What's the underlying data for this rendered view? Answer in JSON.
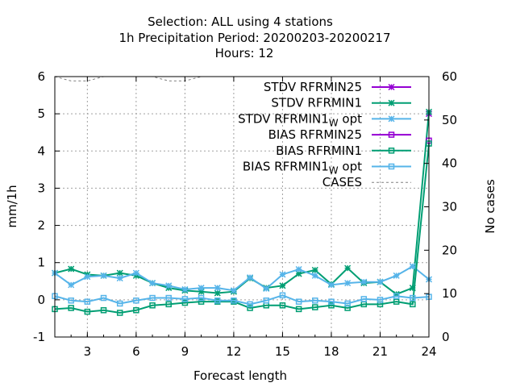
{
  "chart_data": {
    "type": "line",
    "title_lines": [
      "Selection: ALL using     4 stations",
      "1h Precipitation   Period: 20200203-20200217",
      "Hours:  12"
    ],
    "xlabel": "Forecast length",
    "ylabel": "mm/1h",
    "y2label": "No cases",
    "x": [
      1,
      2,
      3,
      4,
      5,
      6,
      7,
      8,
      9,
      10,
      11,
      12,
      13,
      14,
      15,
      16,
      17,
      18,
      19,
      20,
      21,
      22,
      23,
      24
    ],
    "xlim": [
      1,
      24
    ],
    "ylim": [
      -1,
      6
    ],
    "y2lim": [
      0,
      60
    ],
    "xticks": [
      "3",
      "6",
      "9",
      "12",
      "15",
      "18",
      "21",
      "24"
    ],
    "yticks": [
      "-1",
      "0",
      "1",
      "2",
      "3",
      "4",
      "5",
      "6"
    ],
    "y2ticks": [
      "0",
      "10",
      "20",
      "30",
      "40",
      "50",
      "60"
    ],
    "grid": true,
    "legend_position": "top-right",
    "series": [
      {
        "name": "STDV RFRMIN25",
        "color": "#9400d3",
        "marker": "star",
        "axis": "y",
        "values": [
          null,
          null,
          null,
          null,
          null,
          null,
          null,
          null,
          null,
          null,
          null,
          null,
          null,
          null,
          null,
          null,
          null,
          null,
          null,
          null,
          null,
          null,
          null,
          5.0
        ]
      },
      {
        "name": "STDV RFRMIN1",
        "color": "#009e73",
        "marker": "star",
        "axis": "y",
        "values": [
          0.72,
          0.83,
          0.68,
          0.65,
          0.72,
          0.65,
          0.45,
          0.32,
          0.25,
          0.22,
          0.18,
          0.22,
          0.58,
          0.32,
          0.38,
          0.7,
          0.8,
          0.42,
          0.85,
          0.45,
          0.48,
          0.15,
          0.32,
          5.05
        ]
      },
      {
        "name": "STDV RFRMIN1_W opt",
        "color": "#56b4e9",
        "marker": "star",
        "axis": "y",
        "values": [
          0.72,
          0.4,
          0.62,
          0.65,
          0.58,
          0.72,
          0.45,
          0.38,
          0.28,
          0.32,
          0.32,
          0.25,
          0.6,
          0.3,
          0.68,
          0.82,
          0.65,
          0.4,
          0.45,
          0.48,
          0.48,
          0.65,
          0.9,
          0.55
        ]
      },
      {
        "name": "BIAS RFRMIN25",
        "color": "#9400d3",
        "marker": "square",
        "axis": "y",
        "values": [
          null,
          null,
          null,
          null,
          null,
          null,
          null,
          null,
          null,
          null,
          null,
          null,
          null,
          null,
          null,
          null,
          null,
          null,
          null,
          null,
          null,
          null,
          null,
          4.28
        ]
      },
      {
        "name": "BIAS RFRMIN1",
        "color": "#009e73",
        "marker": "square",
        "axis": "y",
        "values": [
          -0.25,
          -0.22,
          -0.32,
          -0.28,
          -0.35,
          -0.28,
          -0.15,
          -0.12,
          -0.08,
          -0.05,
          -0.05,
          -0.05,
          -0.22,
          -0.15,
          -0.15,
          -0.25,
          -0.2,
          -0.15,
          -0.22,
          -0.12,
          -0.12,
          -0.05,
          -0.12,
          4.2
        ]
      },
      {
        "name": "BIAS RFRMIN1_W opt",
        "color": "#56b4e9",
        "marker": "square",
        "axis": "y",
        "values": [
          0.1,
          -0.02,
          -0.05,
          0.05,
          -0.1,
          -0.02,
          0.05,
          0.05,
          0.02,
          0.05,
          -0.02,
          -0.02,
          -0.12,
          -0.02,
          0.12,
          -0.05,
          -0.02,
          -0.05,
          -0.1,
          0.02,
          0.0,
          0.1,
          0.05,
          0.08
        ]
      },
      {
        "name": "CASES",
        "color": "#808080",
        "marker": "none",
        "dashed": true,
        "axis": "y2",
        "values": [
          60,
          59,
          59,
          60,
          60,
          60,
          60,
          59,
          59,
          60,
          60,
          60,
          60,
          60,
          60,
          60,
          60,
          60,
          60,
          60,
          60,
          60,
          60,
          60
        ]
      }
    ]
  }
}
